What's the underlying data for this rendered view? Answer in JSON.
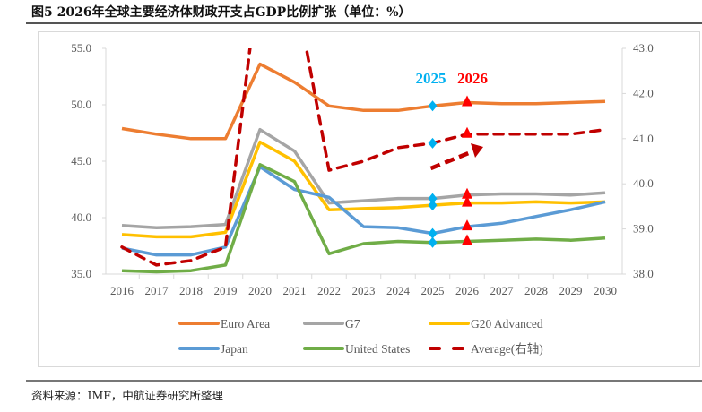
{
  "title": "图5  2026年全球主要经济体财政开支占GDP比例扩张（单位：%）",
  "source": "资料来源：IMF，中航证券研究所整理",
  "chart_data": {
    "type": "line",
    "title": "2026年全球主要经济体财政开支占GDP比例扩张（单位：%）",
    "xlabel": "",
    "ylabel": "",
    "x": [
      2016,
      2017,
      2018,
      2019,
      2020,
      2021,
      2022,
      2023,
      2024,
      2025,
      2026,
      2027,
      2028,
      2029,
      2030
    ],
    "x_tick_labels": [
      "2016",
      "2017",
      "2018",
      "2019",
      "2020",
      "2021",
      "2022",
      "2023",
      "2024",
      "2025",
      "2026",
      "2027",
      "2028",
      "2029",
      "2030"
    ],
    "ylim": [
      35,
      55
    ],
    "y_ticks": [
      "35.0",
      "40.0",
      "45.0",
      "50.0",
      "55.0"
    ],
    "y2lim": [
      38,
      43
    ],
    "y2_ticks": [
      "38.0",
      "39.0",
      "40.0",
      "41.0",
      "42.0",
      "43.0"
    ],
    "grid": false,
    "legend_position": "bottom",
    "series": [
      {
        "name": "Euro Area",
        "axis": "left",
        "color": "#ED7D31",
        "style": "solid",
        "values": [
          47.9,
          47.4,
          47.0,
          47.0,
          53.6,
          52.0,
          49.9,
          49.5,
          49.5,
          49.9,
          50.2,
          50.1,
          50.1,
          50.2,
          50.3
        ]
      },
      {
        "name": "G7",
        "axis": "left",
        "color": "#A5A5A5",
        "style": "solid",
        "values": [
          39.3,
          39.1,
          39.2,
          39.4,
          47.8,
          45.9,
          41.3,
          41.5,
          41.7,
          41.7,
          42.0,
          42.1,
          42.1,
          42.0,
          42.2
        ]
      },
      {
        "name": "G20 Advanced",
        "axis": "left",
        "color": "#FFC000",
        "style": "solid",
        "values": [
          38.5,
          38.3,
          38.3,
          38.7,
          46.7,
          45.0,
          40.7,
          40.8,
          40.9,
          41.1,
          41.3,
          41.3,
          41.4,
          41.3,
          41.4
        ]
      },
      {
        "name": "Japan",
        "axis": "left",
        "color": "#5B9BD5",
        "style": "solid",
        "values": [
          37.3,
          36.7,
          36.7,
          37.4,
          44.5,
          42.5,
          41.8,
          39.2,
          39.1,
          38.6,
          39.2,
          39.5,
          40.1,
          40.7,
          41.4
        ]
      },
      {
        "name": "United States",
        "axis": "left",
        "color": "#70AD47",
        "style": "solid",
        "values": [
          35.3,
          35.2,
          35.3,
          35.8,
          44.7,
          43.2,
          36.8,
          37.7,
          37.9,
          37.8,
          37.9,
          38.0,
          38.1,
          38.0,
          38.2
        ]
      },
      {
        "name": "Average(右轴)",
        "axis": "right",
        "color": "#C00000",
        "style": "dashed",
        "values": [
          38.6,
          38.2,
          38.3,
          38.6,
          44.8,
          44.4,
          40.3,
          40.5,
          40.8,
          40.9,
          41.1,
          41.1,
          41.1,
          41.1,
          41.2
        ]
      }
    ],
    "markers": {
      "2025": {
        "label": "2025",
        "color": "#00B0F0",
        "shape": "diamond"
      },
      "2026": {
        "label": "2026",
        "color": "#FF0000",
        "shape": "triangle"
      }
    },
    "annotations": [
      {
        "text": "2025",
        "color": "#00B0F0"
      },
      {
        "text": "2026",
        "color": "#FF0000"
      },
      {
        "text": "trend-arrow",
        "color": "#C00000"
      }
    ]
  }
}
